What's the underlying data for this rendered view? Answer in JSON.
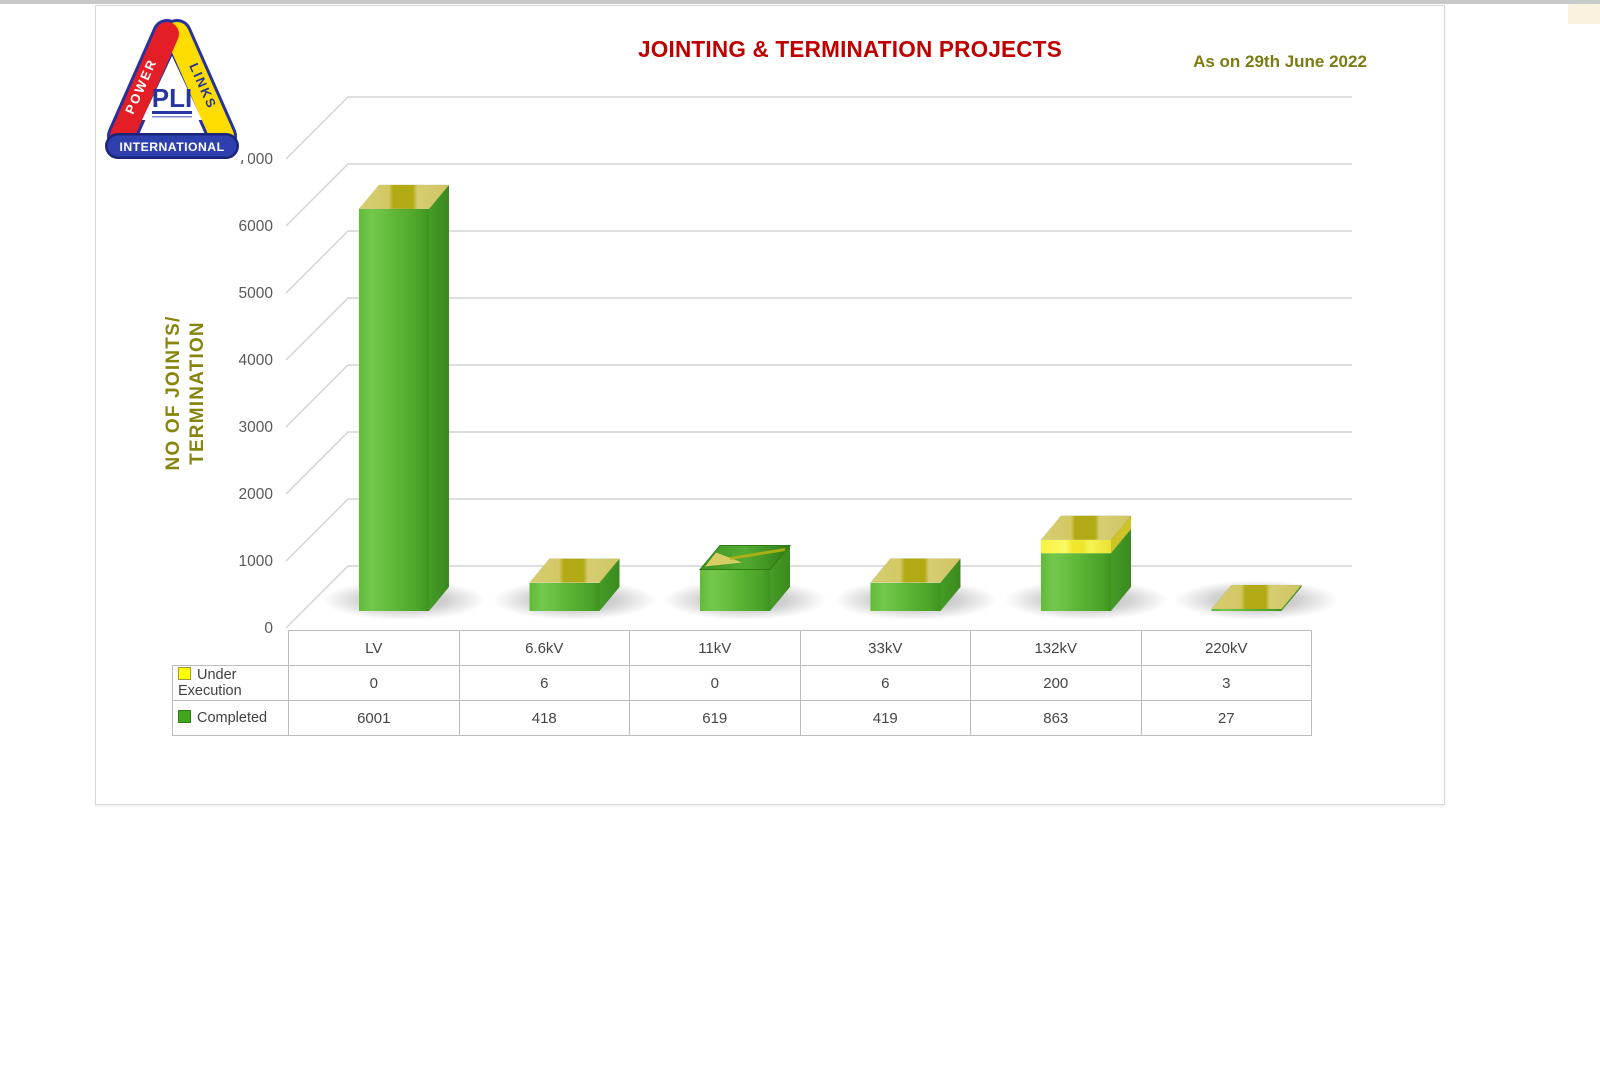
{
  "header": {
    "title": "JOINTING & TERMINATION PROJECTS",
    "title_color": "#c00000",
    "as_on_date": "As on 29th June 2022",
    "date_color": "#7c7c15"
  },
  "logo": {
    "abbr": "PLI",
    "side_left": "POWER",
    "side_right": "LINKS",
    "banner": "INTERNATIONAL",
    "colors": {
      "red": "#e41e26",
      "yellow": "#ffdc00",
      "blue": "#2b3aa5"
    }
  },
  "chart_data": {
    "type": "bar",
    "style": "3d-stacked-column",
    "title": "JOINTING & TERMINATION PROJECTS",
    "ylabel_lines": [
      "NO OF JOINTS/",
      "TERMINATION"
    ],
    "categories": [
      "LV",
      "6.6kV",
      "11kV",
      "33kV",
      "132kV",
      "220kV"
    ],
    "series": [
      {
        "name": "Under Execution",
        "color": "#ffff00",
        "values": [
          0,
          6,
          0,
          6,
          200,
          3
        ]
      },
      {
        "name": "Completed",
        "color": "#4ca32c",
        "values": [
          6001,
          418,
          619,
          419,
          863,
          27
        ]
      }
    ],
    "stack_order_bottom_to_top": [
      "Completed",
      "Under Execution"
    ],
    "ylim": [
      0,
      7000
    ],
    "yticks": [
      0,
      1000,
      2000,
      3000,
      4000,
      5000,
      6000,
      7000
    ],
    "gridlines": true,
    "legend_position": "data-table-left",
    "data_table_shown": true
  }
}
